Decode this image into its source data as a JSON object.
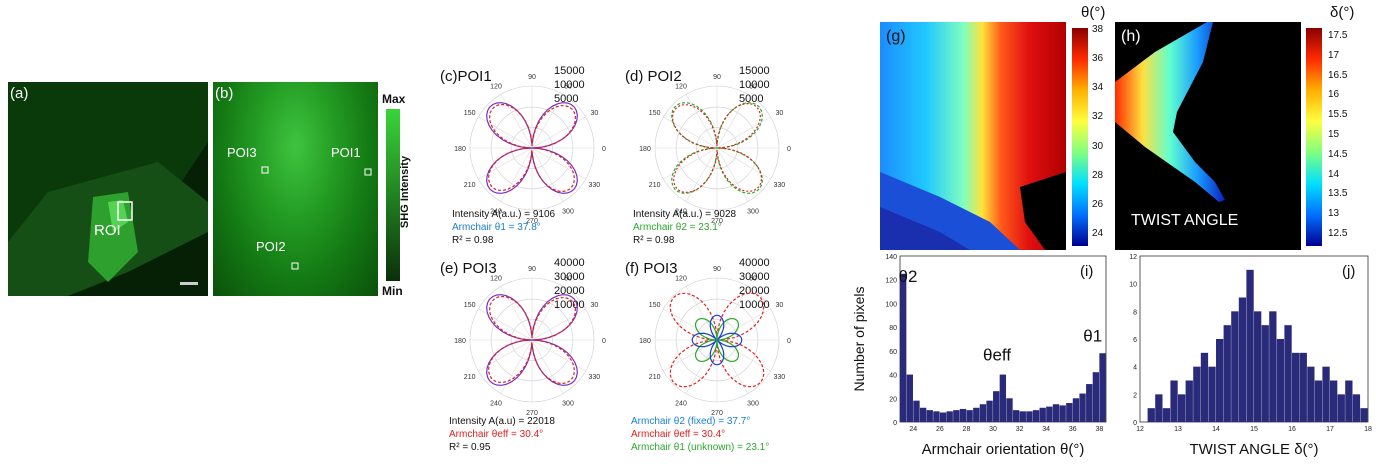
{
  "panel_a": {
    "letter": "(a)",
    "roi": "ROI"
  },
  "panel_b": {
    "letter": "(b)",
    "poi1": "POI1",
    "poi2": "POI2",
    "poi3": "POI3"
  },
  "colorbar_shg": {
    "max": "Max",
    "min": "Min",
    "title": "SHG Intensity"
  },
  "polar": {
    "angles": [
      "90",
      "60",
      "30",
      "0",
      "330",
      "300",
      "270",
      "240",
      "210",
      "180",
      "150",
      "120"
    ],
    "c": {
      "letter": "(c)POI1",
      "radial": [
        "15000",
        "10000",
        "5000"
      ],
      "l1": "Intensity A(a.u.) = 9106",
      "l2": "Armchair θ1 = 37.8°",
      "l3": "R² = 0.98"
    },
    "d": {
      "letter": "(d) POI2",
      "radial": [
        "15000",
        "10000",
        "5000"
      ],
      "l1": "Intensity A(a.u.) = 9028",
      "l2": "Armchair θ2 = 23.1°",
      "l3": "R² = 0.98"
    },
    "e": {
      "letter": "(e) POI3",
      "radial": [
        "40000",
        "30000",
        "20000",
        "10000"
      ],
      "l1": "Intensity A(a.u) = 22018",
      "l2": "Armchair θeff = 30.4°",
      "l3": "R² = 0.95"
    },
    "f": {
      "letter": "(f) POI3",
      "radial": [
        "40000",
        "30000",
        "20000",
        "10000"
      ],
      "l1": "Armchair θ2 (fixed) = 37.7°",
      "l2": "Armchair θeff = 30.4°",
      "l3": "Armchair θ1 (unknown) = 23.1°"
    }
  },
  "map_g": {
    "letter": "(g)",
    "unit": "θ(°)",
    "ticks": [
      "38",
      "36",
      "34",
      "32",
      "30",
      "28",
      "26",
      "24"
    ]
  },
  "map_h": {
    "letter": "(h)",
    "unit": "δ(°)",
    "ticks": [
      "17.5",
      "17",
      "16.5",
      "16",
      "15.5",
      "15",
      "14.5",
      "14",
      "13.5",
      "13",
      "12.5"
    ],
    "caption": "TWIST ANGLE"
  },
  "hist_i": {
    "letter": "(i)",
    "ylabel": "Number of pixels",
    "xlabel": "Armchair orientation θ(°)",
    "yticks": [
      "140",
      "120",
      "100",
      "80",
      "60",
      "40",
      "20",
      "0"
    ],
    "xticks": [
      "24",
      "26",
      "28",
      "30",
      "32",
      "34",
      "36",
      "38"
    ],
    "t2": "θ2",
    "teff": "θeff",
    "t1": "θ1"
  },
  "hist_j": {
    "letter": "(j)",
    "xlabel": "TWIST ANGLE δ(°)",
    "yticks": [
      "12",
      "10",
      "8",
      "6",
      "4",
      "2",
      "0"
    ],
    "xticks": [
      "12",
      "13",
      "14",
      "15",
      "16",
      "17",
      "18"
    ]
  },
  "chart_data": [
    {
      "type": "bar",
      "title": "",
      "xlabel": "Armchair orientation θ(°)",
      "ylabel": "Number of pixels",
      "xlim": [
        23,
        38.5
      ],
      "ylim": [
        0,
        140
      ],
      "x": [
        23,
        23.5,
        24,
        24.5,
        25,
        25.5,
        26,
        26.5,
        27,
        27.5,
        28,
        28.5,
        29,
        29.5,
        30,
        30.5,
        31,
        31.5,
        32,
        32.5,
        33,
        33.5,
        34,
        34.5,
        35,
        35.5,
        36,
        36.5,
        37,
        37.5,
        38
      ],
      "values": [
        125,
        40,
        18,
        12,
        10,
        9,
        8,
        9,
        10,
        11,
        10,
        12,
        15,
        18,
        26,
        40,
        20,
        10,
        9,
        9,
        10,
        12,
        13,
        15,
        14,
        16,
        20,
        24,
        32,
        42,
        58
      ]
    },
    {
      "type": "bar",
      "title": "",
      "xlabel": "TWIST ANGLE δ(°)",
      "ylabel": "",
      "xlim": [
        12,
        18
      ],
      "ylim": [
        0,
        12
      ],
      "x": [
        12.2,
        12.4,
        12.6,
        12.8,
        13,
        13.2,
        13.4,
        13.6,
        13.8,
        14,
        14.2,
        14.4,
        14.6,
        14.8,
        15,
        15.2,
        15.4,
        15.6,
        15.8,
        16,
        16.2,
        16.4,
        16.6,
        16.8,
        17,
        17.2,
        17.4,
        17.6,
        17.8
      ],
      "values": [
        1,
        2,
        1,
        3,
        2,
        3,
        4,
        5,
        4,
        6,
        7,
        8,
        9,
        11,
        8,
        7,
        8,
        6,
        7,
        5,
        5,
        4,
        3,
        4,
        3,
        2,
        3,
        2,
        1
      ]
    }
  ]
}
